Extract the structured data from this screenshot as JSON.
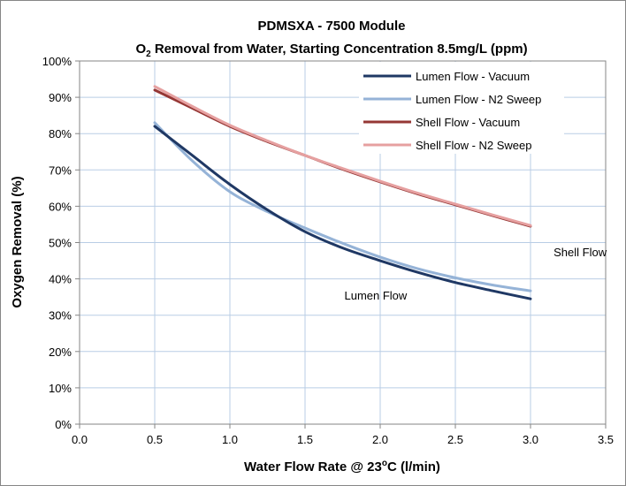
{
  "chart_data": {
    "type": "line",
    "title": "PDMSXA - 7500 Module",
    "subtitle_prefix": "O",
    "subtitle_sub": "2",
    "subtitle_rest": " Removal from Water, Starting Concentration 8.5mg/L (ppm)",
    "xlabel_prefix": "Water Flow Rate @ 23",
    "xlabel_sup": "o",
    "xlabel_suffix": "C (l/min)",
    "ylabel": "Oxygen Removal (%)",
    "xlim": [
      0.0,
      3.5
    ],
    "ylim": [
      0,
      100
    ],
    "x_ticks": [
      "0.0",
      "0.5",
      "1.0",
      "1.5",
      "2.0",
      "2.5",
      "3.0",
      "3.5"
    ],
    "y_ticks": [
      "0%",
      "10%",
      "20%",
      "30%",
      "40%",
      "50%",
      "60%",
      "70%",
      "80%",
      "90%",
      "100%"
    ],
    "grid": true,
    "legend_position": "top-right",
    "series": [
      {
        "name": "Lumen Flow - Vacuum",
        "color": "#1f3864",
        "x": [
          0.5,
          0.75,
          1.0,
          1.25,
          1.5,
          1.75,
          2.0,
          2.25,
          2.5,
          2.75,
          3.0
        ],
        "y": [
          82,
          74,
          66,
          59,
          53,
          48.5,
          45,
          41.8,
          39,
          36.7,
          34.5
        ]
      },
      {
        "name": "Lumen Flow - N2 Sweep",
        "color": "#95b3d7",
        "x": [
          0.5,
          0.75,
          1.0,
          1.25,
          1.5,
          1.75,
          2.0,
          2.25,
          2.5,
          2.75,
          3.0
        ],
        "y": [
          83,
          72.5,
          64,
          58.5,
          54,
          49.8,
          46,
          42.8,
          40.3,
          38.3,
          36.7
        ]
      },
      {
        "name": "Shell Flow - Vacuum",
        "color": "#953735",
        "x": [
          0.5,
          0.75,
          1.0,
          1.25,
          1.5,
          1.75,
          2.0,
          2.25,
          2.5,
          2.75,
          3.0
        ],
        "y": [
          92,
          87,
          82,
          77.8,
          74,
          70.2,
          66.7,
          63.4,
          60.4,
          57.4,
          54.5
        ]
      },
      {
        "name": "Shell Flow - N2 Sweep",
        "color": "#e6a0a0",
        "x": [
          0.5,
          0.75,
          1.0,
          1.25,
          1.5,
          1.75,
          2.0,
          2.25,
          2.5,
          2.75,
          3.0
        ],
        "y": [
          93,
          87.5,
          82.3,
          78,
          74,
          70.4,
          66.9,
          63.6,
          60.6,
          57.6,
          54.7
        ]
      }
    ],
    "annotations": [
      {
        "text": "Shell Flow",
        "x": 3.33,
        "y": 47.5
      },
      {
        "text": "Lumen Flow",
        "x": 1.97,
        "y": 35.5
      }
    ]
  }
}
